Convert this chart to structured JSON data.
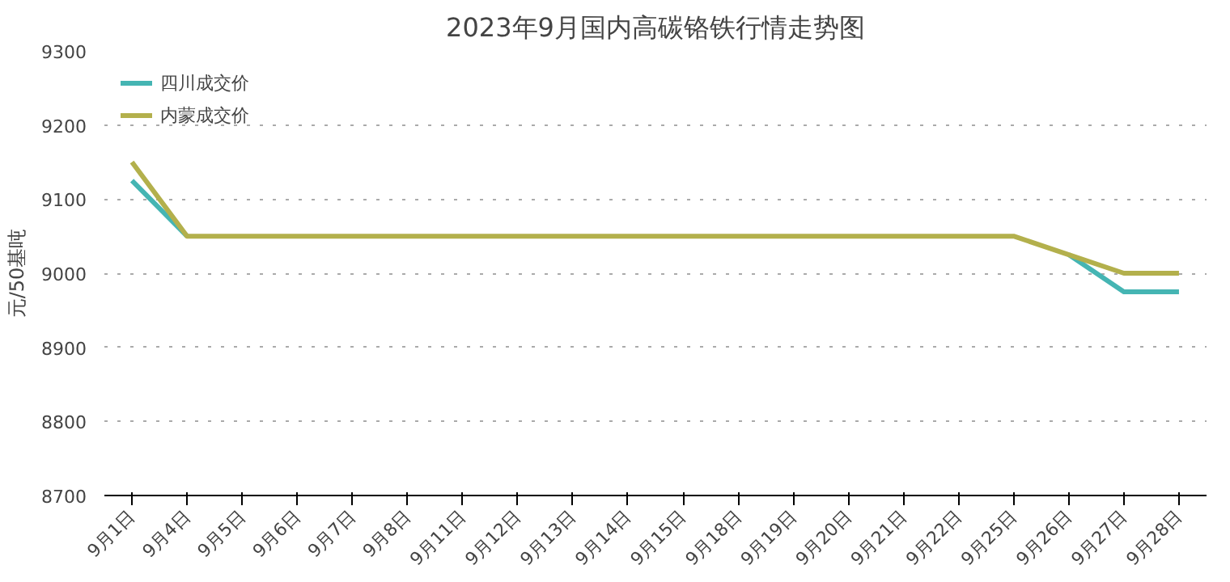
{
  "chart_data": {
    "type": "line",
    "title": "2023年9月国内高碳铬铁行情走势图",
    "ylabel": "元/50基吨",
    "categories": [
      "9月1日",
      "9月4日",
      "9月5日",
      "9月6日",
      "9月7日",
      "9月8日",
      "9月11日",
      "9月12日",
      "9月13日",
      "9月14日",
      "9月15日",
      "9月18日",
      "9月19日",
      "9月20日",
      "9月21日",
      "9月22日",
      "9月25日",
      "9月26日",
      "9月27日",
      "9月28日"
    ],
    "series": [
      {
        "name": "四川成交价",
        "color": "#45b5b3",
        "values": [
          9125,
          9050,
          null,
          null,
          null,
          null,
          null,
          null,
          null,
          null,
          null,
          null,
          null,
          null,
          null,
          null,
          null,
          9025,
          8975,
          8975
        ]
      },
      {
        "name": "内蒙成交价",
        "color": "#b3b04c",
        "values": [
          9150,
          9050,
          9050,
          9050,
          9050,
          9050,
          9050,
          9050,
          9050,
          9050,
          9050,
          9050,
          9050,
          9050,
          9050,
          9050,
          9050,
          9025,
          9000,
          9000
        ]
      }
    ],
    "ylim": [
      8700,
      9300
    ],
    "yticks": [
      8700,
      8800,
      8900,
      9000,
      9100,
      9200,
      9300
    ],
    "grid": "y",
    "legend": "top left",
    "line_style": "solid",
    "marker": "none"
  }
}
